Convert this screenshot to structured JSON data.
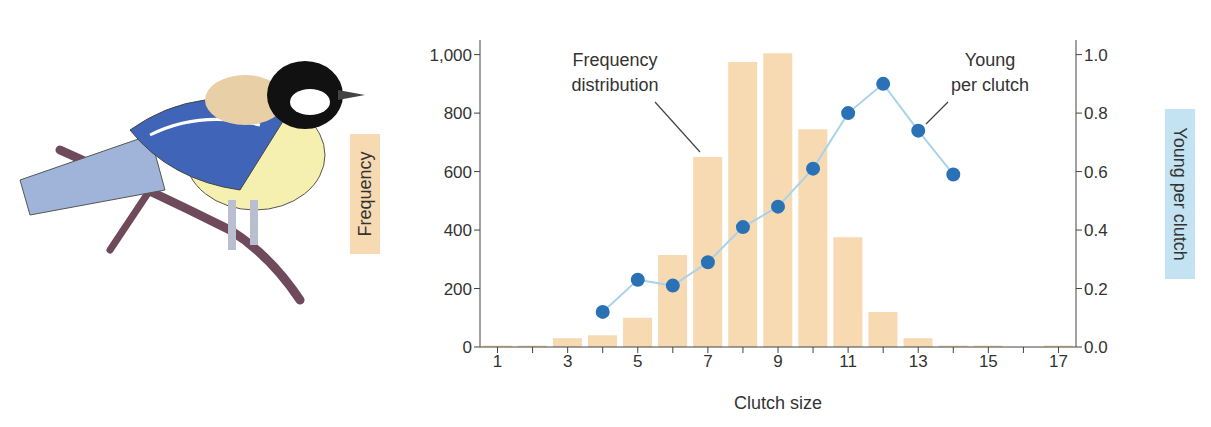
{
  "chart_data": {
    "type": "bar",
    "categories": [
      "1",
      null,
      "3",
      null,
      "5",
      null,
      "7",
      null,
      "9",
      null,
      "11",
      null,
      "13",
      null,
      "15",
      null,
      "17"
    ],
    "x_label": "Clutch size",
    "y_label": "Frequency",
    "y2_label": "Young per clutch",
    "series": [
      {
        "name": "Frequency distribution",
        "type": "bar",
        "color": "#f8dab2",
        "values": [
          5,
          5,
          30,
          40,
          100,
          315,
          650,
          975,
          1005,
          745,
          375,
          120,
          30,
          5,
          5,
          0,
          5
        ]
      },
      {
        "name": "Young per clutch",
        "type": "line",
        "axis": "y2",
        "color": "#a9d3ea",
        "marker": "circle",
        "values": [
          null,
          null,
          null,
          0.12,
          0.23,
          0.21,
          0.29,
          0.41,
          0.48,
          0.61,
          0.8,
          0.9,
          0.74,
          0.59,
          null,
          null,
          null
        ]
      }
    ],
    "ylim": [
      0,
      1050
    ],
    "yticks": [
      0,
      200,
      400,
      600,
      800,
      {
        "value": 1000,
        "label": "1,000"
      }
    ],
    "y2lim": [
      0,
      1.05
    ],
    "y2ticks": [
      {
        "value": 0,
        "label": "0.0"
      },
      0.2,
      0.4,
      0.6,
      0.8,
      {
        "value": 1,
        "label": "1.0"
      }
    ]
  }
}
